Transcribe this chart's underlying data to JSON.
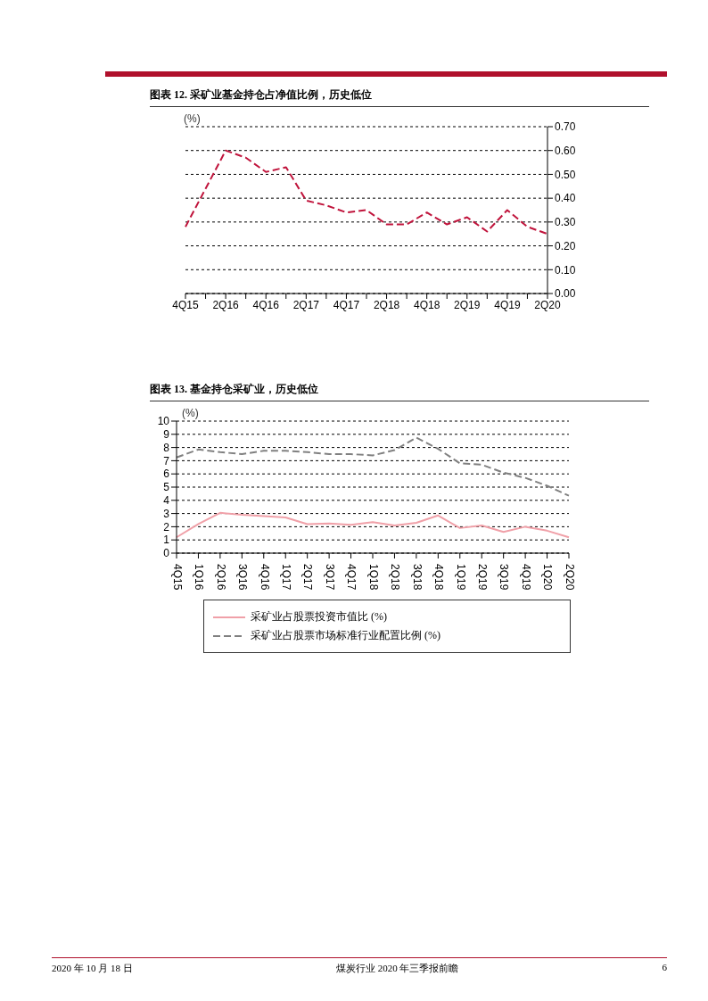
{
  "chart_data": [
    {
      "type": "line",
      "title": "图表 12. 采矿业基金持仓占净值比例，历史低位",
      "ylabel": "(%)",
      "categories": [
        "4Q15",
        null,
        "2Q16",
        null,
        "4Q16",
        null,
        "2Q17",
        null,
        "4Q17",
        null,
        "2Q18",
        null,
        "4Q18",
        null,
        "2Q19",
        null,
        "4Q19",
        null,
        "2Q20"
      ],
      "series": [
        {
          "color": "#c0143c",
          "line_style": "dashed",
          "values": [
            0.28,
            0.44,
            0.6,
            0.57,
            0.51,
            0.53,
            0.39,
            0.37,
            0.34,
            0.35,
            0.29,
            0.29,
            0.34,
            0.29,
            0.32,
            0.26,
            0.35,
            0.28,
            0.25
          ]
        }
      ],
      "ylim": [
        0,
        0.7
      ],
      "yticks": [
        {
          "value": 0,
          "label": "0.00"
        },
        {
          "value": 0.1,
          "label": "0.10"
        },
        {
          "value": 0.2,
          "label": "0.20"
        },
        {
          "value": 0.3,
          "label": "0.30"
        },
        {
          "value": 0.4,
          "label": "0.40"
        },
        {
          "value": 0.5,
          "label": "0.50"
        },
        {
          "value": 0.6,
          "label": "0.60"
        },
        {
          "value": 0.7,
          "label": "0.70"
        }
      ],
      "grid": "y",
      "legend": false,
      "marker": "none"
    },
    {
      "type": "line",
      "title": "图表 13. 基金持仓采矿业，历史低位",
      "ylabel": "(%)",
      "categories": [
        "4Q15",
        "1Q16",
        "2Q16",
        "3Q16",
        "4Q16",
        "1Q17",
        "2Q17",
        "3Q17",
        "4Q17",
        "1Q18",
        "2Q18",
        "3Q18",
        "4Q18",
        "1Q19",
        "2Q19",
        "3Q19",
        "4Q19",
        "1Q20",
        "2Q20"
      ],
      "series": [
        {
          "name": "采矿业占股票投资市值比 (%)",
          "color": "#f0a0a8",
          "line_style": "solid",
          "values": [
            1.2,
            2.2,
            3.05,
            2.9,
            2.8,
            2.7,
            2.2,
            2.25,
            2.15,
            2.35,
            2.1,
            2.3,
            2.85,
            1.9,
            2.1,
            1.6,
            2.0,
            1.7,
            1.2
          ]
        },
        {
          "name": "采矿业占股票市场标准行业配置比例 (%)",
          "color": "#808080",
          "line_style": "dashed",
          "values": [
            7.25,
            7.85,
            7.65,
            7.5,
            7.75,
            7.75,
            7.65,
            7.5,
            7.5,
            7.4,
            7.8,
            8.75,
            7.9,
            6.8,
            6.7,
            6.1,
            5.7,
            5.1,
            4.35
          ]
        }
      ],
      "ylim": [
        0,
        10
      ],
      "yticks": [
        0,
        1,
        2,
        3,
        4,
        5,
        6,
        7,
        8,
        9,
        10
      ],
      "grid": "y",
      "legend": "bottom",
      "marker": "none",
      "annotations": [
        "2020 年 10 月 18 日",
        "煤炭行业 2020 年三季报前瞻",
        "6"
      ]
    }
  ]
}
